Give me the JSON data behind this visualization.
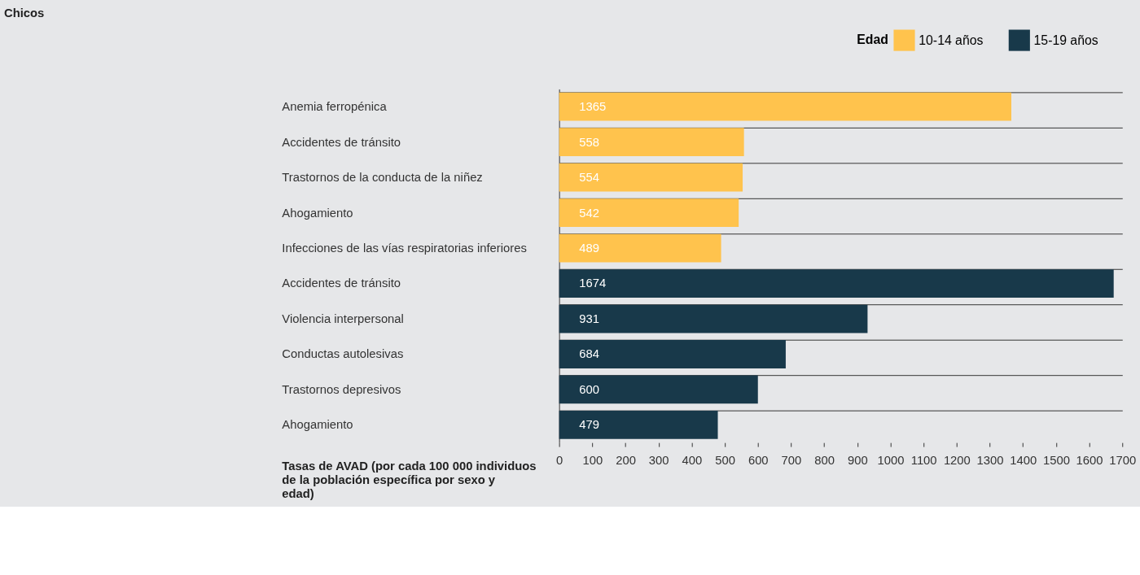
{
  "chart_data": {
    "type": "bar",
    "orientation": "horizontal",
    "title": "Chicos",
    "xlabel": "Tasas de AVAD (por cada 100 000 individuos de la población específica por sexo y edad)",
    "legend_title": "Edad",
    "legend": "top right",
    "grid": "y",
    "data_labels": true,
    "categories": [
      "Anemia ferropénica",
      "Accidentes de tránsito",
      "Trastornos de la conducta de la niñez",
      "Ahogamiento",
      "Infecciones de las vías respiratorias inferiores",
      "Accidentes de tránsito",
      "Violencia interpersonal",
      "Conductas autolesivas",
      "Trastornos depresivos",
      "Ahogamiento"
    ],
    "series": [
      {
        "name": "10-14 años",
        "color": "#ffc34d",
        "values": [
          1365,
          558,
          554,
          542,
          489,
          null,
          null,
          null,
          null,
          null
        ]
      },
      {
        "name": "15-19 años",
        "color": "#18394a",
        "values": [
          null,
          null,
          null,
          null,
          null,
          1674,
          931,
          684,
          600,
          479
        ]
      }
    ],
    "xlim": [
      0,
      1700
    ],
    "xticks": [
      0,
      100,
      200,
      300,
      400,
      500,
      600,
      700,
      800,
      900,
      1000,
      1100,
      1200,
      1300,
      1400,
      1500,
      1600,
      1700
    ]
  }
}
